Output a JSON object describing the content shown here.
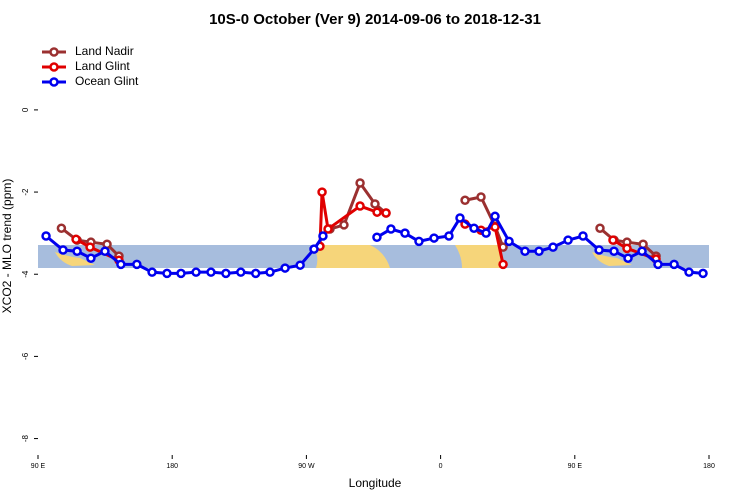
{
  "chart_data": {
    "type": "line",
    "title": "10S-0 October (Ver 9)   2014-09-06 to 2018-12-31",
    "xlabel": "Longitude",
    "ylabel": "XCO2 - MLO trend (ppm)",
    "xlim": [
      90,
      540
    ],
    "ylim": [
      -8.4,
      1.75
    ],
    "xticks": [
      {
        "value": 90,
        "label": "90 E"
      },
      {
        "value": 180,
        "label": "180"
      },
      {
        "value": 270,
        "label": "90 W"
      },
      {
        "value": 360,
        "label": "0"
      },
      {
        "value": 450,
        "label": "90 E"
      },
      {
        "value": 540,
        "label": "180"
      }
    ],
    "yticks": [
      0,
      -2,
      -4,
      -6,
      -8
    ],
    "legend": "top-left",
    "series": [
      {
        "name": "Land Nadir",
        "color": "#9b3030",
        "x": [
          105.7,
          116.2,
          125.5,
          136.3,
          144.3,
          null,
          285.8,
          295.2,
          306,
          316,
          323.4,
          null,
          376.4,
          387.1,
          396.5,
          401.9,
          null,
          466.9,
          476.3,
          485,
          495.8,
          504.5
        ],
        "values": [
          -2.88,
          -3.17,
          -3.22,
          -3.27,
          -3.56,
          null,
          -2.9,
          -2.8,
          -1.78,
          -2.29,
          -2.51,
          null,
          -2.2,
          -2.12,
          -2.83,
          -3.34,
          null,
          -2.88,
          -3.17,
          -3.22,
          -3.27,
          -3.56
        ]
      },
      {
        "name": "Land Glint",
        "color": "#e00000",
        "x": [
          115.5,
          124.9,
          144.3,
          null,
          279.1,
          280.5,
          284.5,
          306,
          317.4,
          323.4,
          null,
          376.4,
          387.1,
          396.5,
          401.9,
          null,
          475.6,
          485,
          504.5
        ],
        "values": [
          -3.15,
          -3.34,
          -3.66,
          null,
          -3.32,
          -2.0,
          -2.9,
          -2.34,
          -2.49,
          -2.51,
          null,
          -2.78,
          -2.93,
          -2.85,
          -3.76,
          null,
          -3.17,
          -3.37,
          -3.63
        ]
      },
      {
        "name": "Ocean Glint",
        "color": "#0000ee",
        "x": [
          95.4,
          106.8,
          116.2,
          125.5,
          134.9,
          145.6,
          156.3,
          166.5,
          176.5,
          185.9,
          196,
          206,
          216,
          226,
          236,
          245.6,
          255.7,
          265.8,
          275.1,
          281.1,
          null,
          317.3,
          326.7,
          336.1,
          345.5,
          355.6,
          365.6,
          373,
          382.4,
          390.5,
          396.5,
          405.9,
          416.6,
          426,
          435.4,
          445.5,
          455.5,
          466.3,
          476.3,
          485.7,
          495.1,
          505.8,
          516.6,
          526.6,
          536
        ],
        "values": [
          -3.07,
          -3.41,
          -3.44,
          -3.61,
          -3.44,
          -3.76,
          -3.76,
          -3.95,
          -3.98,
          -3.98,
          -3.95,
          -3.95,
          -3.98,
          -3.95,
          -3.98,
          -3.95,
          -3.85,
          -3.78,
          -3.39,
          -3.07,
          null,
          -3.1,
          -2.9,
          -3.0,
          -3.2,
          -3.12,
          -3.07,
          -2.63,
          -2.88,
          -3.0,
          -2.59,
          -3.2,
          -3.44,
          -3.44,
          -3.34,
          -3.17,
          -3.07,
          -3.41,
          -3.44,
          -3.61,
          -3.44,
          -3.76,
          -3.76,
          -3.95,
          -3.98
        ]
      }
    ]
  }
}
